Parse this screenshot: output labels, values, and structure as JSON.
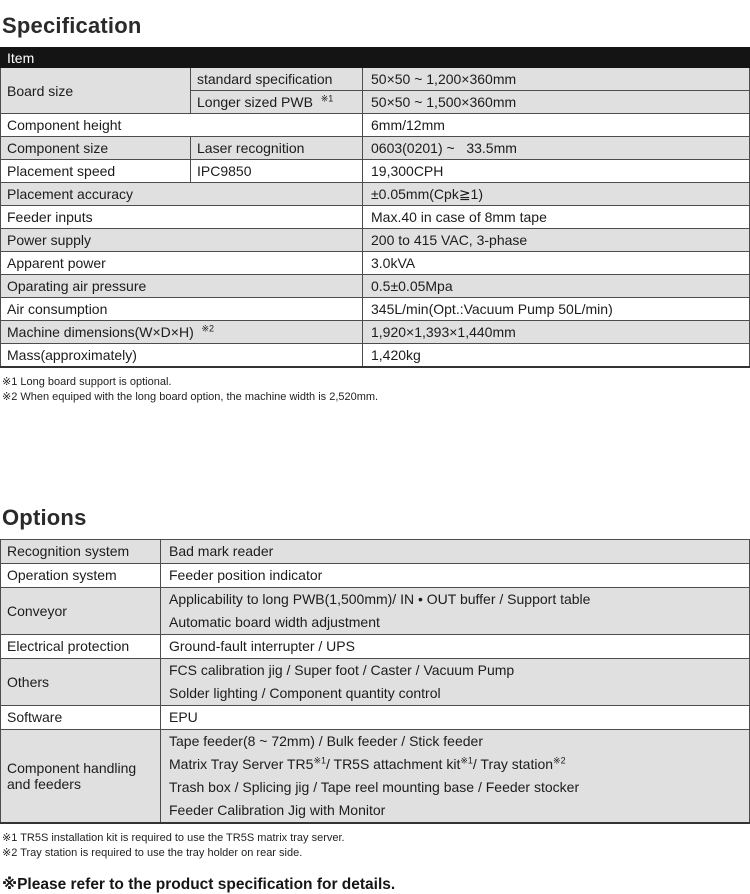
{
  "colors": {
    "header-bar": "#141414",
    "header-text": "#ffffff",
    "row-shaded": "#e0e0e0",
    "row-plain": "#ffffff",
    "border": "#4d4d4d",
    "text": "#1c1c1c"
  },
  "spec_section": {
    "title": "Specification",
    "header": "Item",
    "rows": [
      {
        "item": "Board size",
        "sub_rows": [
          {
            "label": "standard specification",
            "value": "50×50 ~ 1,200×360mm"
          },
          {
            "label": "Longer sized PWB  ※1",
            "value": "50×50 ~ 1,500×360mm"
          }
        ]
      },
      {
        "item": "Component height",
        "value": "6mm/12mm"
      },
      {
        "item": "Component size",
        "sub_rows": [
          {
            "label": "Laser recognition",
            "value": "0603(0201) ~   33.5mm"
          }
        ]
      },
      {
        "item": "Placement speed",
        "sub_rows": [
          {
            "label": "IPC9850",
            "value": "19,300CPH"
          }
        ]
      },
      {
        "item": "Placement accuracy",
        "value": "±0.05mm(Cpk≧1)"
      },
      {
        "item": "Feeder inputs",
        "value": "Max.40 in case of 8mm tape"
      },
      {
        "item": "Power supply",
        "value": "200 to 415 VAC, 3-phase"
      },
      {
        "item": "Apparent power",
        "value": "3.0kVA"
      },
      {
        "item": "Oparating air pressure",
        "value": "0.5±0.05Mpa"
      },
      {
        "item": "Air consumption",
        "value": "345L/min(Opt.:Vacuum Pump 50L/min)"
      },
      {
        "item": "Machine dimensions(W×D×H)  ※2",
        "value": "1,920×1,393×1,440mm"
      },
      {
        "item": "Mass(approximately)",
        "value": "1,420kg"
      }
    ],
    "footnotes": [
      "※1 Long board support is optional.",
      "※2 When equiped with the long board option, the machine width is 2,520mm."
    ]
  },
  "options_section": {
    "title": "Options",
    "rows": [
      {
        "category": "Recognition system",
        "lines": [
          "Bad mark reader"
        ]
      },
      {
        "category": "Operation system",
        "lines": [
          "Feeder position indicator"
        ]
      },
      {
        "category": "Conveyor",
        "lines": [
          "Applicability to long PWB(1,500mm)/ IN • OUT buffer / Support table",
          "Automatic board width adjustment"
        ]
      },
      {
        "category": "Electrical protection",
        "lines": [
          "Ground-fault interrupter / UPS"
        ]
      },
      {
        "category": "Others",
        "lines": [
          "FCS calibration jig / Super foot / Caster / Vacuum Pump",
          "Solder lighting / Component quantity control"
        ]
      },
      {
        "category": "Software",
        "lines": [
          "EPU"
        ]
      },
      {
        "category": "Component handling and feeders",
        "lines": [
          "Tape feeder(8 ~ 72mm) / Bulk feeder / Stick feeder",
          "Matrix Tray Server TR5※1/ TR5S attachment kit※1/ Tray station※2",
          "Trash box / Splicing jig / Tape reel mounting base / Feeder stocker",
          "Feeder Calibration Jig with Monitor"
        ]
      }
    ],
    "footnotes": [
      "※1 TR5S installation kit is required to use the TR5S matrix tray server.",
      "※2 Tray station is required to use the tray holder on rear side."
    ]
  },
  "bottom_note": "※Please refer to the product specification for details."
}
